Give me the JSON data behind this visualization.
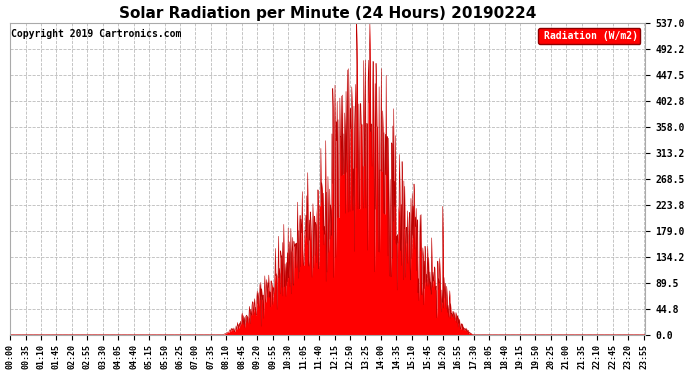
{
  "title": "Solar Radiation per Minute (24 Hours) 20190224",
  "copyright_text": "Copyright 2019 Cartronics.com",
  "legend_label": "Radiation (W/m2)",
  "yticks": [
    0.0,
    44.8,
    89.5,
    134.2,
    179.0,
    223.8,
    268.5,
    313.2,
    358.0,
    402.8,
    447.5,
    492.2,
    537.0
  ],
  "ymax": 537.0,
  "ymin": 0.0,
  "bg_color": "#ffffff",
  "plot_bg_color": "#ffffff",
  "grid_color": "#bbbbbb",
  "fill_color": "#ff0000",
  "line_color": "#bb0000",
  "title_fontsize": 11,
  "tick_fontsize": 6,
  "copyright_fontsize": 7,
  "sunrise_min": 480,
  "sunset_min": 1050,
  "solar_noon_min": 810,
  "spike_min": 815,
  "spike_val": 537.0
}
